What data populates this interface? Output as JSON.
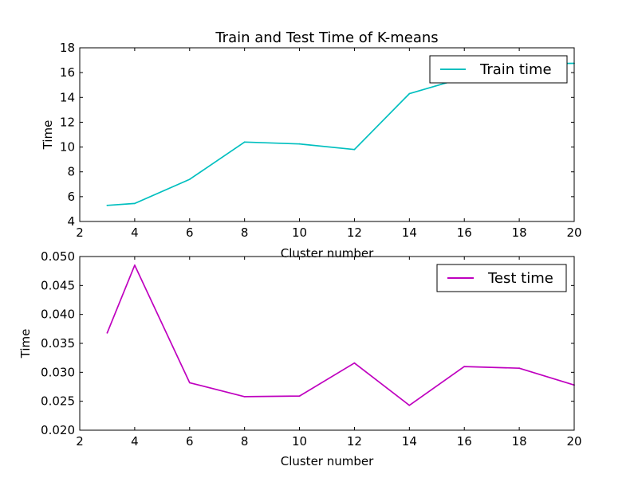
{
  "chart_data": [
    {
      "type": "line",
      "title": "Train and Test Time of K-means",
      "xlabel": "Cluster number",
      "ylabel": "Time",
      "xlim": [
        2,
        20
      ],
      "ylim": [
        4,
        18
      ],
      "xticks": [
        2,
        4,
        6,
        8,
        10,
        12,
        14,
        16,
        18,
        20
      ],
      "xtick_labels": [
        "2",
        "4",
        "6",
        "8",
        "10",
        "12",
        "14",
        "16",
        "18",
        "20"
      ],
      "yticks": [
        4,
        6,
        8,
        10,
        12,
        14,
        16,
        18
      ],
      "ytick_labels": [
        "4",
        "6",
        "8",
        "10",
        "12",
        "14",
        "16",
        "18"
      ],
      "grid": false,
      "legend": "top-right",
      "series": [
        {
          "name": "Train time",
          "color": "#00bfbf",
          "x": [
            3,
            4,
            6,
            8,
            10,
            12,
            14,
            16,
            18,
            20
          ],
          "y": [
            5.3,
            5.45,
            7.4,
            10.4,
            10.25,
            9.8,
            14.3,
            15.6,
            16.7,
            16.75
          ]
        }
      ]
    },
    {
      "type": "line",
      "title": "",
      "xlabel": "Cluster number",
      "ylabel": "Time",
      "xlim": [
        2,
        20
      ],
      "ylim": [
        0.02,
        0.05
      ],
      "xticks": [
        2,
        4,
        6,
        8,
        10,
        12,
        14,
        16,
        18,
        20
      ],
      "xtick_labels": [
        "2",
        "4",
        "6",
        "8",
        "10",
        "12",
        "14",
        "16",
        "18",
        "20"
      ],
      "yticks": [
        0.02,
        0.025,
        0.03,
        0.035,
        0.04,
        0.045,
        0.05
      ],
      "ytick_labels": [
        "0.020",
        "0.025",
        "0.030",
        "0.035",
        "0.040",
        "0.045",
        "0.050"
      ],
      "grid": false,
      "legend": "top-right",
      "series": [
        {
          "name": "Test time",
          "color": "#bf00bf",
          "x": [
            3,
            4,
            6,
            8,
            10,
            12,
            14,
            16,
            18,
            20
          ],
          "y": [
            0.0368,
            0.0485,
            0.0282,
            0.0258,
            0.0259,
            0.0316,
            0.0243,
            0.031,
            0.0307,
            0.0278
          ]
        }
      ]
    }
  ]
}
